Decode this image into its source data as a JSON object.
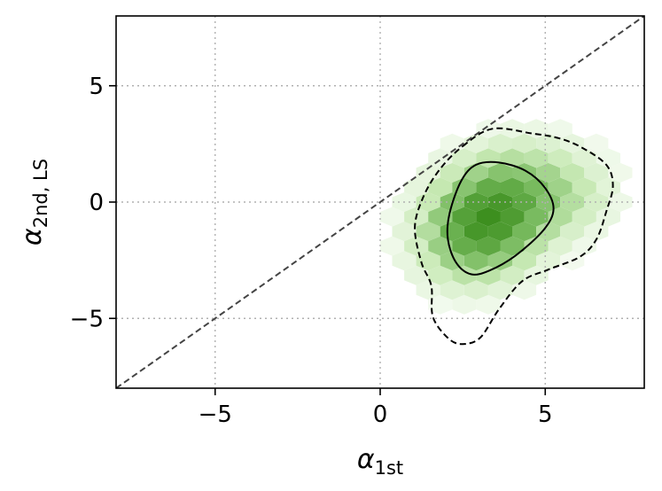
{
  "chart_data": {
    "type": "hexbin",
    "title": "",
    "xlabel": {
      "symbol": "α",
      "subscript": "1st"
    },
    "ylabel": {
      "symbol": "α",
      "subscript": "2nd, LS"
    },
    "xlim": [
      -8,
      8
    ],
    "ylim": [
      -8,
      8
    ],
    "xticks": [
      -5,
      0,
      5
    ],
    "yticks": [
      -5,
      0,
      5
    ],
    "xtick_labels": [
      "−5",
      "0",
      "5"
    ],
    "ytick_labels": [
      "−5",
      "0",
      "5"
    ],
    "grid": true,
    "grid_style": "dotted",
    "diagonal_reference_line": {
      "from": [
        -8,
        -8
      ],
      "to": [
        8,
        8
      ],
      "style": "dashed",
      "color": "#444444"
    },
    "colormap": "Greens",
    "color_scale": [
      "#ffffff",
      "#c7e9b4",
      "#74b85a",
      "#3d8f1f"
    ],
    "density_centers": [
      {
        "x": 3.5,
        "y": -0.2,
        "sx": 1.35,
        "sy": 1.6,
        "rho": 0.25,
        "w": 1.0
      },
      {
        "x": 3.0,
        "y": -1.6,
        "sx": 1.1,
        "sy": 1.4,
        "rho": 0.1,
        "w": 0.5
      },
      {
        "x": 5.8,
        "y": 0.3,
        "sx": 1.0,
        "sy": 1.2,
        "rho": 0.0,
        "w": 0.25
      }
    ],
    "contours": [
      {
        "level": "inner",
        "style": "solid",
        "points": [
          [
            2.9,
            1.6
          ],
          [
            3.6,
            1.7
          ],
          [
            4.4,
            1.35
          ],
          [
            5.0,
            0.6
          ],
          [
            5.25,
            -0.3
          ],
          [
            4.95,
            -1.2
          ],
          [
            4.1,
            -2.3
          ],
          [
            3.3,
            -2.95
          ],
          [
            2.75,
            -3.1
          ],
          [
            2.3,
            -2.6
          ],
          [
            2.05,
            -1.6
          ],
          [
            2.1,
            -0.5
          ],
          [
            2.45,
            0.9
          ]
        ]
      },
      {
        "level": "outer",
        "style": "dashed",
        "points": [
          [
            2.5,
            2.4
          ],
          [
            3.4,
            3.15
          ],
          [
            4.6,
            2.95
          ],
          [
            5.4,
            2.75
          ],
          [
            6.1,
            2.35
          ],
          [
            6.85,
            1.6
          ],
          [
            7.05,
            0.7
          ],
          [
            6.85,
            -0.4
          ],
          [
            6.55,
            -1.6
          ],
          [
            6.05,
            -2.35
          ],
          [
            5.1,
            -2.9
          ],
          [
            4.3,
            -3.4
          ],
          [
            3.6,
            -4.6
          ],
          [
            3.05,
            -5.8
          ],
          [
            2.55,
            -6.1
          ],
          [
            2.1,
            -5.9
          ],
          [
            1.6,
            -4.95
          ],
          [
            1.55,
            -3.6
          ],
          [
            1.25,
            -2.6
          ],
          [
            1.05,
            -1.1
          ],
          [
            1.3,
            0.2
          ],
          [
            1.8,
            1.4
          ]
        ]
      }
    ]
  }
}
